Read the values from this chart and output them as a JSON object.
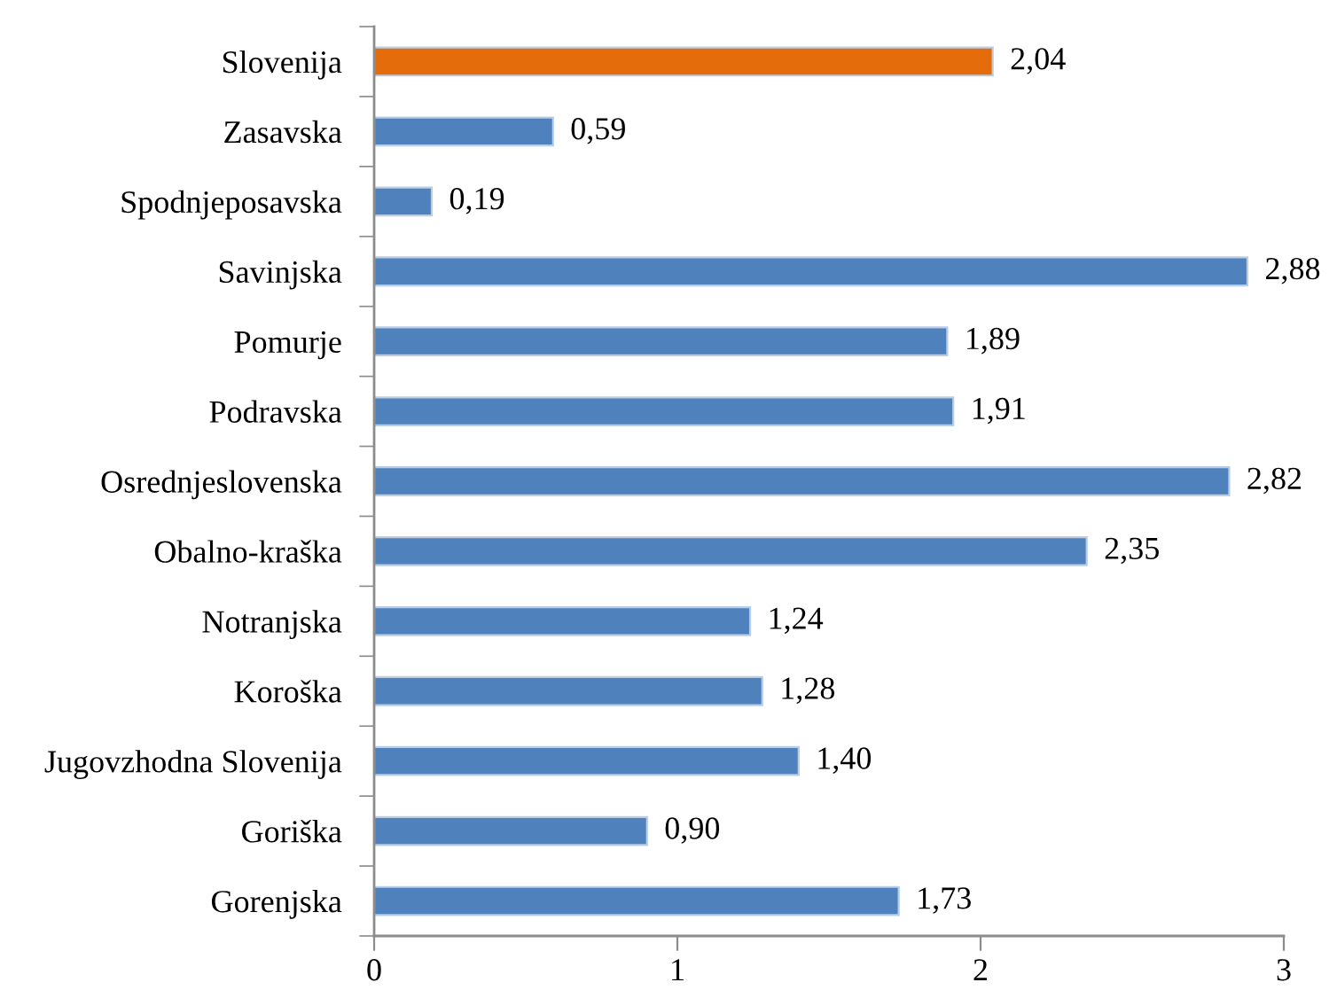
{
  "chart_data": {
    "type": "bar",
    "orientation": "horizontal",
    "categories": [
      "Slovenija",
      "Zasavska",
      "Spodnjeposavska",
      "Savinjska",
      "Pomurje",
      "Podravska",
      "Osrednjeslovenska",
      "Obalno-kraška",
      "Notranjska",
      "Koroška",
      "Jugovzhodna Slovenija",
      "Goriška",
      "Gorenjska"
    ],
    "values": [
      2.04,
      0.59,
      0.19,
      2.88,
      1.89,
      1.91,
      2.82,
      2.35,
      1.24,
      1.28,
      1.4,
      0.9,
      1.73
    ],
    "value_labels": [
      "2,04",
      "0,59",
      "0,19",
      "2,88",
      "1,89",
      "1,91",
      "2,82",
      "2,35",
      "1,24",
      "1,28",
      "1,40",
      "0,90",
      "1,73"
    ],
    "colors": [
      "#e46c0a",
      "#4f81bd",
      "#4f81bd",
      "#4f81bd",
      "#4f81bd",
      "#4f81bd",
      "#4f81bd",
      "#4f81bd",
      "#4f81bd",
      "#4f81bd",
      "#4f81bd",
      "#4f81bd",
      "#4f81bd"
    ],
    "xlim": [
      0,
      3
    ],
    "xticks": [
      0,
      1,
      2,
      3
    ],
    "grid": false,
    "legend": false
  }
}
